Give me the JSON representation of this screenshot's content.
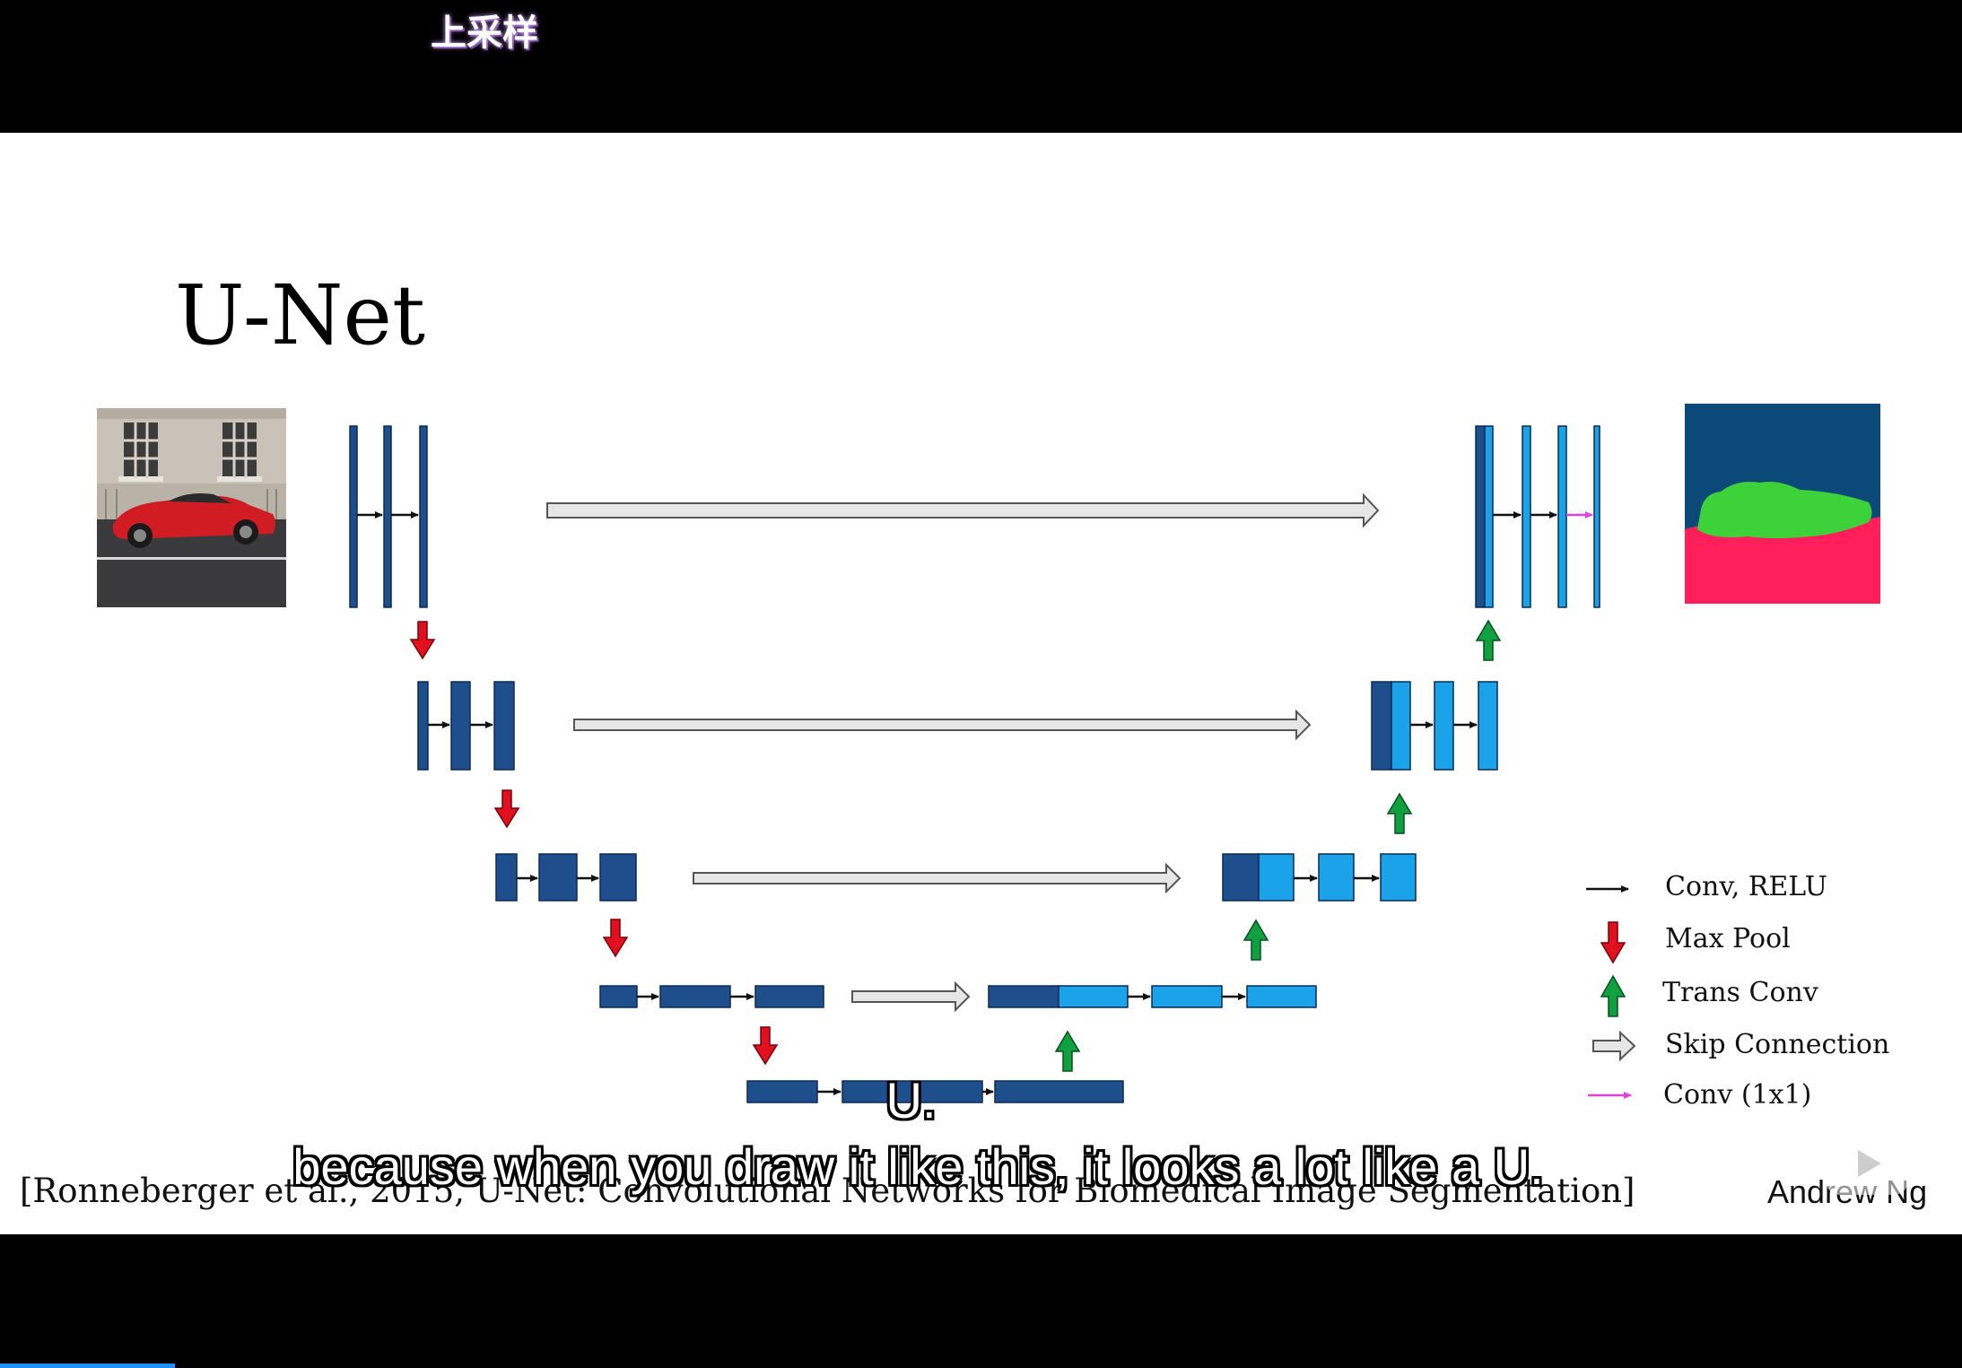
{
  "video": {
    "chapter_title": "上采样",
    "subtitle_main": "because when you draw it like this, it looks a lot like a U.",
    "subtitle_word": "U."
  },
  "slide": {
    "title": "U-Net",
    "citation": "[Ronneberger et al., 2015, U-Net: Convolutional Networks for Biomedical Image Segmentation]",
    "author": "Andrew Ng"
  },
  "legend": [
    {
      "label": "Conv, RELU",
      "icon": "black-arrow-icon"
    },
    {
      "label": "Max Pool",
      "icon": "red-down-arrow-icon"
    },
    {
      "label": "Trans Conv",
      "icon": "green-up-arrow-icon"
    },
    {
      "label": "Skip Connection",
      "icon": "hollow-arrow-icon"
    },
    {
      "label": "Conv (1x1)",
      "icon": "magenta-arrow-icon"
    }
  ],
  "colors": {
    "encoder_block": "#1f4e8c",
    "decoder_block": "#1aa3e8",
    "max_pool": "#e0101e",
    "trans_conv": "#10a040",
    "conv_1x1": "#e040e0",
    "mask_background": "#0b4a78",
    "mask_car": "#3ed23a",
    "mask_road": "#ff1f5a"
  }
}
